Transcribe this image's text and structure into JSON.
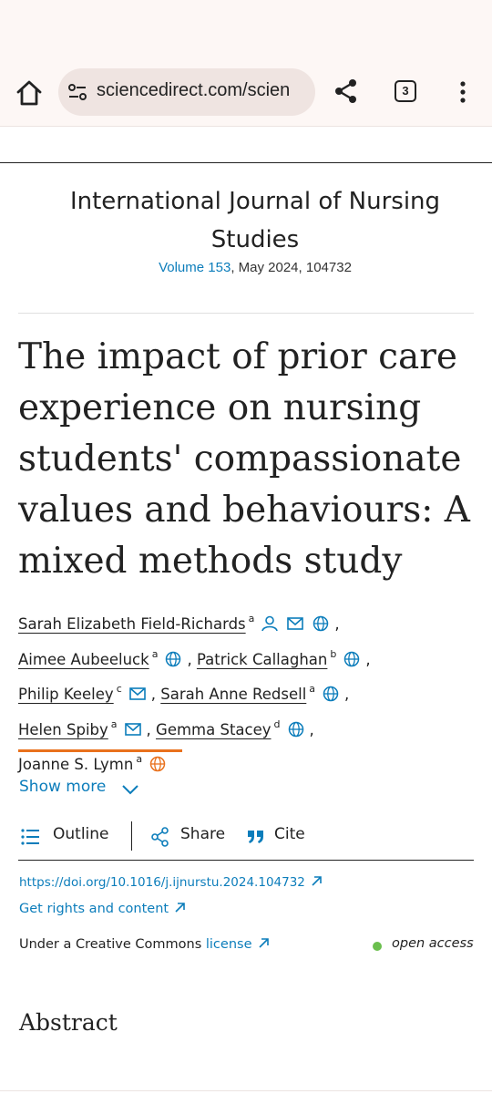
{
  "browser": {
    "url": "sciencedirect.com/scien",
    "tab_count": "3",
    "icons": [
      "home-icon",
      "site-settings-icon",
      "share-icon",
      "tab-switcher-icon",
      "more-menu-icon"
    ]
  },
  "journal": {
    "name_line1": "International Journal of Nursing",
    "name_line2": "Studies",
    "volume_link": "Volume 153",
    "issue_info": ", May 2024, 104732"
  },
  "article": {
    "title": "The impact of prior care experience on nursing students' compassionate values and behaviours: A mixed methods study"
  },
  "authors": [
    {
      "name": "Sarah Elizabeth Field-Richards",
      "aff": "a",
      "icons": [
        "person-icon",
        "email-icon",
        "globe-icon"
      ]
    },
    {
      "name": "Aimee Aubeeluck",
      "aff": "a",
      "icons": [
        "globe-icon"
      ]
    },
    {
      "name": "Patrick Callaghan",
      "aff": "b",
      "icons": [
        "globe-icon"
      ]
    },
    {
      "name": "Philip Keeley",
      "aff": "c",
      "icons": [
        "email-icon"
      ]
    },
    {
      "name": "Sarah Anne Redsell",
      "aff": "a",
      "icons": [
        "globe-icon"
      ]
    },
    {
      "name": "Helen Spiby",
      "aff": "a",
      "icons": [
        "email-icon"
      ]
    },
    {
      "name": "Gemma Stacey",
      "aff": "d",
      "icons": [
        "globe-icon"
      ]
    },
    {
      "name": "Joanne S. Lymn",
      "aff": "a",
      "icons": [
        "globe-icon"
      ]
    }
  ],
  "separator": ",",
  "show_more": "Show more",
  "tools": {
    "outline": "Outline",
    "share": "Share",
    "cite": "Cite"
  },
  "links": {
    "doi": "https://doi.org/10.1016/j.ijnurstu.2024.104732",
    "rights": "Get rights and content"
  },
  "license": {
    "prefix": "Under a Creative Commons ",
    "link": "license",
    "open_access": "open access"
  },
  "section": {
    "abstract": "Abstract"
  },
  "colors": {
    "link": "#0c7dbb",
    "accent_orange": "#e9711c",
    "open_access_green": "#6bbf4e",
    "toolbar_bg": "#fdf7f5"
  }
}
